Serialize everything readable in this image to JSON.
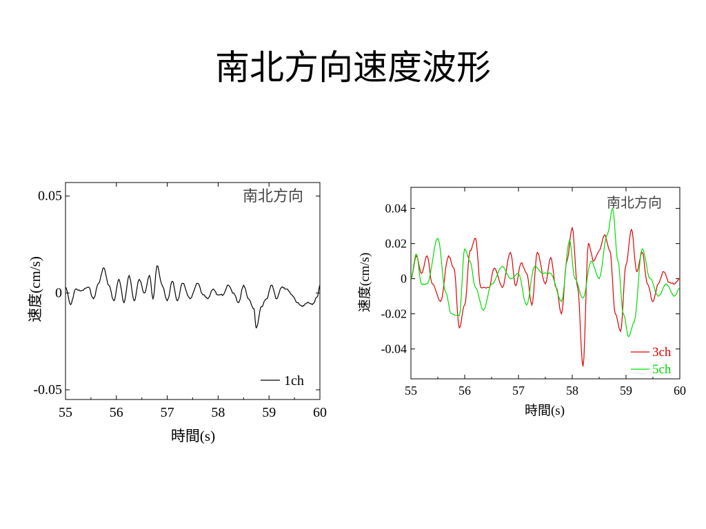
{
  "slide": {
    "title": "南北方向速度波形"
  },
  "chart_data": [
    {
      "type": "line",
      "annotation": "南北方向",
      "xlabel": "時間(s)",
      "ylabel": "速度(cm/s)",
      "xlim": [
        55,
        60
      ],
      "ylim": [
        -0.055,
        0.057
      ],
      "x_ticks": [
        55,
        56,
        57,
        58,
        59,
        60
      ],
      "x_tick_labels": [
        "55",
        "56",
        "57",
        "58",
        "59",
        "60"
      ],
      "y_ticks": [
        0.05,
        0,
        -0.05
      ],
      "y_tick_labels": [
        "0.05",
        "0",
        "-0.05"
      ],
      "legend_position": "bottom-right",
      "series": [
        {
          "name": "1ch",
          "color": "#000000",
          "x": [
            55.0,
            55.1,
            55.2,
            55.3,
            55.45,
            55.55,
            55.65,
            55.75,
            55.85,
            55.95,
            56.05,
            56.15,
            56.25,
            56.35,
            56.45,
            56.55,
            56.65,
            56.72,
            56.8,
            56.9,
            57.0,
            57.1,
            57.2,
            57.3,
            57.45,
            57.6,
            57.7,
            57.8,
            57.9,
            58.0,
            58.1,
            58.2,
            58.3,
            58.4,
            58.5,
            58.6,
            58.7,
            58.75,
            58.85,
            58.95,
            59.05,
            59.15,
            59.25,
            59.35,
            59.45,
            59.55,
            59.65,
            59.75,
            59.85,
            59.95,
            60.0
          ],
          "y": [
            0.003,
            -0.006,
            0.002,
            0.001,
            0.003,
            -0.003,
            0.005,
            0.013,
            0.004,
            -0.004,
            0.007,
            -0.005,
            0.009,
            -0.004,
            0.007,
            0.0,
            0.009,
            -0.003,
            0.014,
            0.004,
            -0.004,
            0.006,
            -0.004,
            0.005,
            -0.003,
            0.005,
            -0.001,
            -0.003,
            0.002,
            -0.001,
            -0.001,
            0.004,
            0.0,
            -0.005,
            0.004,
            -0.003,
            -0.008,
            -0.018,
            -0.007,
            -0.003,
            0.004,
            -0.003,
            0.003,
            0.002,
            -0.001,
            -0.005,
            -0.007,
            -0.005,
            -0.006,
            -0.002,
            0.004
          ]
        }
      ]
    },
    {
      "type": "line",
      "annotation": "南北方向",
      "xlabel": "時間(s)",
      "ylabel": "速度(cm/s)",
      "xlim": [
        55,
        60
      ],
      "ylim": [
        -0.057,
        0.052
      ],
      "x_ticks": [
        55,
        56,
        57,
        58,
        59,
        60
      ],
      "x_tick_labels": [
        "55",
        "56",
        "57",
        "58",
        "59",
        "60"
      ],
      "y_ticks": [
        0.04,
        0.02,
        0,
        -0.02,
        -0.04
      ],
      "y_tick_labels": [
        "0.04",
        "0.02",
        "0",
        "-0.02",
        "-0.04"
      ],
      "legend_position": "bottom-right",
      "series": [
        {
          "name": "3ch",
          "color": "#dd0000",
          "x": [
            55.0,
            55.1,
            55.2,
            55.3,
            55.4,
            55.55,
            55.7,
            55.8,
            55.9,
            56.0,
            56.1,
            56.2,
            56.3,
            56.45,
            56.55,
            56.7,
            56.85,
            56.95,
            57.05,
            57.15,
            57.25,
            57.35,
            57.5,
            57.6,
            57.7,
            57.8,
            57.9,
            58.0,
            58.1,
            58.2,
            58.3,
            58.4,
            58.5,
            58.6,
            58.7,
            58.8,
            58.9,
            59.0,
            59.1,
            59.2,
            59.3,
            59.4,
            59.5,
            59.6,
            59.7,
            59.8,
            59.9,
            60.0
          ],
          "y": [
            0.0,
            0.013,
            0.003,
            0.013,
            -0.003,
            -0.013,
            0.013,
            0.006,
            -0.028,
            -0.015,
            0.016,
            0.023,
            -0.005,
            -0.005,
            0.006,
            -0.005,
            0.015,
            -0.004,
            0.009,
            0.003,
            -0.015,
            0.015,
            -0.003,
            0.012,
            -0.005,
            -0.02,
            0.01,
            0.029,
            -0.005,
            -0.05,
            0.02,
            0.01,
            0.016,
            0.025,
            0.016,
            -0.02,
            -0.03,
            0.008,
            0.028,
            0.004,
            0.015,
            -0.003,
            -0.013,
            -0.003,
            0.004,
            -0.002,
            -0.003,
            0.0
          ],
          "_x_override": null
        },
        {
          "name": "5ch",
          "color": "#00dd00",
          "x": [
            55.0,
            55.1,
            55.2,
            55.3,
            55.5,
            55.65,
            55.75,
            55.9,
            56.0,
            56.1,
            56.2,
            56.35,
            56.5,
            56.7,
            56.85,
            57.0,
            57.15,
            57.3,
            57.45,
            57.6,
            57.8,
            57.95,
            58.05,
            58.2,
            58.35,
            58.5,
            58.65,
            58.75,
            58.85,
            58.95,
            59.05,
            59.15,
            59.3,
            59.45,
            59.6,
            59.75,
            59.9,
            60.0
          ],
          "y": [
            0.0,
            0.014,
            -0.003,
            -0.003,
            0.023,
            -0.008,
            -0.02,
            -0.021,
            0.017,
            0.01,
            -0.005,
            -0.018,
            -0.003,
            0.007,
            0.0,
            0.003,
            -0.015,
            0.007,
            0.003,
            0.003,
            -0.013,
            0.022,
            0.0,
            -0.011,
            0.01,
            0.0,
            0.025,
            0.04,
            0.01,
            -0.02,
            -0.033,
            -0.025,
            0.017,
            0.0,
            -0.01,
            -0.003,
            -0.01,
            -0.005
          ]
        }
      ]
    }
  ]
}
